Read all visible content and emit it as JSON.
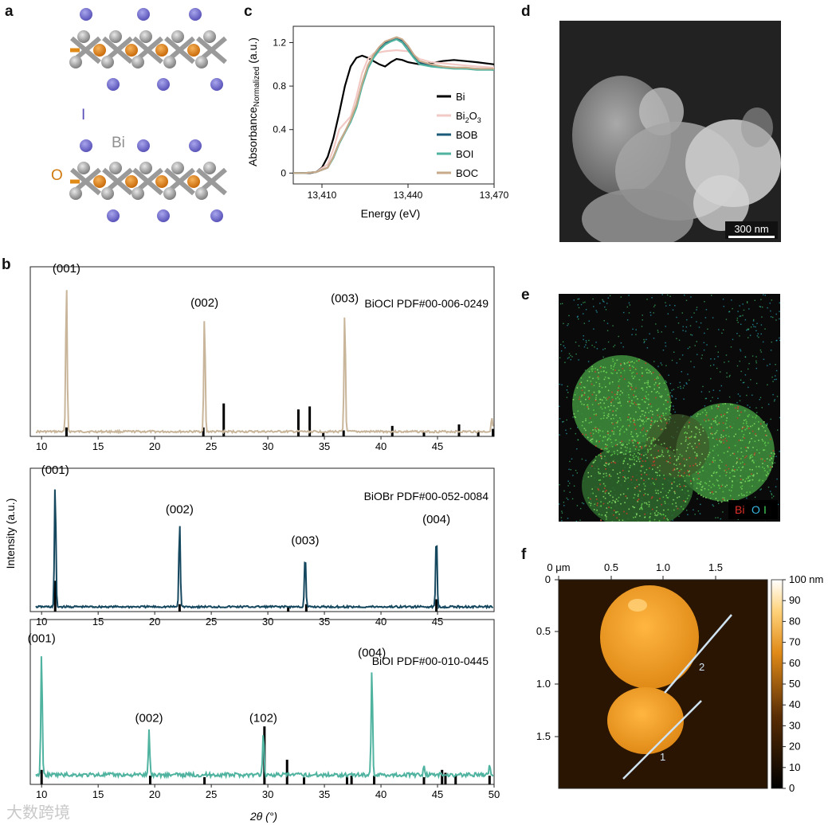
{
  "panels": {
    "a": "a",
    "b": "b",
    "c": "c",
    "d": "d",
    "e": "e",
    "f": "f"
  },
  "panel_a": {
    "label_I": "I",
    "label_Bi": "Bi",
    "label_O": "O"
  },
  "panel_d": {
    "scale_bar": "300 nm"
  },
  "panel_e": {
    "legend_bi": "Bi",
    "legend_o": "O",
    "legend_i": "I"
  },
  "panel_f": {
    "x_ticks": [
      "0 μm",
      "0.5",
      "1.0",
      "1.5"
    ],
    "y_ticks": [
      "0",
      "0.5",
      "1.0",
      "1.5"
    ],
    "colorbar_ticks": [
      "100 nm",
      "90",
      "80",
      "70",
      "60",
      "50",
      "40",
      "30",
      "20",
      "10",
      "0"
    ],
    "profile_labels": [
      "1",
      "2"
    ]
  },
  "watermark": "大数跨境",
  "colors": {
    "bi": "#000000",
    "bi2o3": "#f2c9c4",
    "bob": "#1b5a78",
    "boi": "#4fb3a0",
    "boc": "#c8a98a"
  },
  "chart_data": [
    {
      "type": "line",
      "panel": "c",
      "xlabel": "Energy (eV)",
      "ylabel_main": "Absorbance",
      "ylabel_sub": "Normalized",
      "ylabel_unit": " (a.u.)",
      "xlim": [
        13400,
        13470
      ],
      "ylim": [
        -0.1,
        1.35
      ],
      "x_ticks": [
        13410,
        13440,
        13470
      ],
      "x_tick_labels": [
        "13,410",
        "13,440",
        "13,470"
      ],
      "y_ticks": [
        0,
        0.4,
        0.8,
        1.2
      ],
      "y_tick_labels": [
        "0",
        "0.4",
        "0.8",
        "1.2"
      ],
      "legend": [
        "Bi",
        "Bi2O3",
        "BOB",
        "BOI",
        "BOC"
      ],
      "series": [
        {
          "name": "Bi",
          "x": [
            13400,
            13404,
            13406,
            13408,
            13410,
            13412,
            13414,
            13416,
            13418,
            13420,
            13422,
            13424,
            13426,
            13428,
            13430,
            13432,
            13434,
            13436,
            13438,
            13440,
            13444,
            13448,
            13452,
            13456,
            13460,
            13464,
            13470
          ],
          "y": [
            0,
            0,
            0,
            0.01,
            0.05,
            0.15,
            0.32,
            0.55,
            0.8,
            0.98,
            1.06,
            1.08,
            1.06,
            1.03,
            1.0,
            0.98,
            1.02,
            1.05,
            1.04,
            1.02,
            1.0,
            1.01,
            1.03,
            1.04,
            1.03,
            1.02,
            1.0
          ]
        },
        {
          "name": "Bi2O3",
          "x": [
            13400,
            13404,
            13408,
            13412,
            13414,
            13416,
            13418,
            13420,
            13422,
            13424,
            13426,
            13428,
            13430,
            13432,
            13436,
            13440,
            13444,
            13448,
            13452,
            13456,
            13460,
            13464,
            13470
          ],
          "y": [
            0,
            0,
            0.01,
            0.08,
            0.22,
            0.4,
            0.46,
            0.52,
            0.7,
            0.92,
            1.05,
            1.1,
            1.11,
            1.12,
            1.13,
            1.12,
            1.05,
            1.02,
            1.01,
            1.0,
            0.99,
            0.98,
            0.97
          ]
        },
        {
          "name": "BOB",
          "x": [
            13400,
            13404,
            13408,
            13412,
            13414,
            13416,
            13418,
            13420,
            13422,
            13424,
            13426,
            13428,
            13430,
            13432,
            13434,
            13436,
            13438,
            13440,
            13442,
            13444,
            13448,
            13452,
            13456,
            13460,
            13464,
            13470
          ],
          "y": [
            0,
            0,
            0.01,
            0.05,
            0.15,
            0.28,
            0.38,
            0.48,
            0.62,
            0.82,
            0.98,
            1.08,
            1.15,
            1.2,
            1.22,
            1.24,
            1.22,
            1.16,
            1.08,
            1.02,
            0.99,
            0.97,
            0.97,
            0.96,
            0.96,
            0.95
          ]
        },
        {
          "name": "BOI",
          "x": [
            13400,
            13404,
            13408,
            13412,
            13414,
            13416,
            13418,
            13420,
            13422,
            13424,
            13426,
            13428,
            13430,
            13432,
            13434,
            13436,
            13438,
            13440,
            13442,
            13444,
            13448,
            13452,
            13456,
            13460,
            13464,
            13470
          ],
          "y": [
            0,
            0,
            0.01,
            0.05,
            0.14,
            0.27,
            0.37,
            0.47,
            0.6,
            0.8,
            0.96,
            1.06,
            1.13,
            1.18,
            1.21,
            1.23,
            1.2,
            1.13,
            1.06,
            1.0,
            0.98,
            0.97,
            0.96,
            0.96,
            0.95,
            0.95
          ]
        },
        {
          "name": "BOC",
          "x": [
            13400,
            13404,
            13408,
            13412,
            13414,
            13416,
            13418,
            13420,
            13422,
            13424,
            13426,
            13428,
            13430,
            13432,
            13434,
            13436,
            13438,
            13440,
            13442,
            13444,
            13448,
            13452,
            13456,
            13460,
            13464,
            13470
          ],
          "y": [
            0,
            0,
            0.01,
            0.05,
            0.15,
            0.28,
            0.38,
            0.49,
            0.63,
            0.83,
            0.99,
            1.09,
            1.16,
            1.21,
            1.23,
            1.25,
            1.23,
            1.17,
            1.09,
            1.03,
            1.0,
            0.98,
            0.97,
            0.97,
            0.96,
            0.96
          ]
        }
      ]
    },
    {
      "type": "line",
      "panel": "b",
      "xlabel": "2θ (°)",
      "ylabel": "Intensity (a.u.)",
      "xlim": [
        9,
        50
      ],
      "x_ticks": [
        10,
        15,
        20,
        25,
        30,
        35,
        40,
        45,
        50
      ],
      "x_tick_labels": [
        "10",
        "15",
        "20",
        "25",
        "30",
        "35",
        "40",
        "45",
        "50"
      ],
      "subplots": [
        {
          "name": "BiOCl",
          "reference": "BiOCl PDF#00-006-0249",
          "color": "#c8b59a",
          "x_max_tick": 45,
          "peaks": [
            {
              "x": 12.2,
              "h": 1.0,
              "label": "(001)"
            },
            {
              "x": 24.4,
              "h": 0.77,
              "label": "(002)"
            },
            {
              "x": 36.8,
              "h": 0.8,
              "label": "(003)"
            },
            {
              "x": 49.8,
              "h": 0.1,
              "label": ""
            }
          ],
          "ref_lines": [
            {
              "x": 12.2,
              "h": 0.06
            },
            {
              "x": 24.3,
              "h": 0.06
            },
            {
              "x": 26.1,
              "h": 0.22
            },
            {
              "x": 32.7,
              "h": 0.18
            },
            {
              "x": 33.7,
              "h": 0.2
            },
            {
              "x": 34.9,
              "h": 0.03
            },
            {
              "x": 36.7,
              "h": 0.04
            },
            {
              "x": 41.0,
              "h": 0.07
            },
            {
              "x": 43.8,
              "h": 0.03
            },
            {
              "x": 46.9,
              "h": 0.08
            },
            {
              "x": 48.6,
              "h": 0.03
            },
            {
              "x": 49.9,
              "h": 0.05
            }
          ]
        },
        {
          "name": "BiOBr",
          "reference": "BiOBr PDF#00-052-0084",
          "color": "#15475e",
          "x_max_tick": 45,
          "peaks": [
            {
              "x": 11.2,
              "h": 1.0,
              "label": "(001)"
            },
            {
              "x": 22.2,
              "h": 0.68,
              "label": "(002)"
            },
            {
              "x": 33.3,
              "h": 0.43,
              "label": "(003)"
            },
            {
              "x": 44.9,
              "h": 0.6,
              "label": "(004)"
            }
          ],
          "ref_lines": [
            {
              "x": 11.2,
              "h": 0.25
            },
            {
              "x": 22.2,
              "h": 0.06
            },
            {
              "x": 31.8,
              "h": 0.04
            },
            {
              "x": 33.4,
              "h": 0.06
            },
            {
              "x": 44.9,
              "h": 0.1
            }
          ]
        },
        {
          "name": "BiOI",
          "reference": "BiOI PDF#00-010-0445",
          "color": "#4fb3a0",
          "x_max_tick": 50,
          "peaks": [
            {
              "x": 10.0,
              "h": 0.85,
              "label": "(001)"
            },
            {
              "x": 19.5,
              "h": 0.3,
              "label": "(002)"
            },
            {
              "x": 29.6,
              "h": 0.3,
              "label": "(102)"
            },
            {
              "x": 39.2,
              "h": 0.75,
              "label": "(004)"
            },
            {
              "x": 43.8,
              "h": 0.07,
              "label": ""
            },
            {
              "x": 49.6,
              "h": 0.06,
              "label": ""
            }
          ],
          "ref_lines": [
            {
              "x": 10.0,
              "h": 0.1
            },
            {
              "x": 19.6,
              "h": 0.06
            },
            {
              "x": 24.4,
              "h": 0.05
            },
            {
              "x": 29.7,
              "h": 0.4
            },
            {
              "x": 31.7,
              "h": 0.17
            },
            {
              "x": 33.2,
              "h": 0.05
            },
            {
              "x": 37.0,
              "h": 0.06
            },
            {
              "x": 37.4,
              "h": 0.06
            },
            {
              "x": 39.4,
              "h": 0.06
            },
            {
              "x": 43.8,
              "h": 0.05
            },
            {
              "x": 45.4,
              "h": 0.1
            },
            {
              "x": 45.7,
              "h": 0.08
            },
            {
              "x": 46.6,
              "h": 0.06
            },
            {
              "x": 49.6,
              "h": 0.06
            }
          ]
        }
      ]
    }
  ]
}
